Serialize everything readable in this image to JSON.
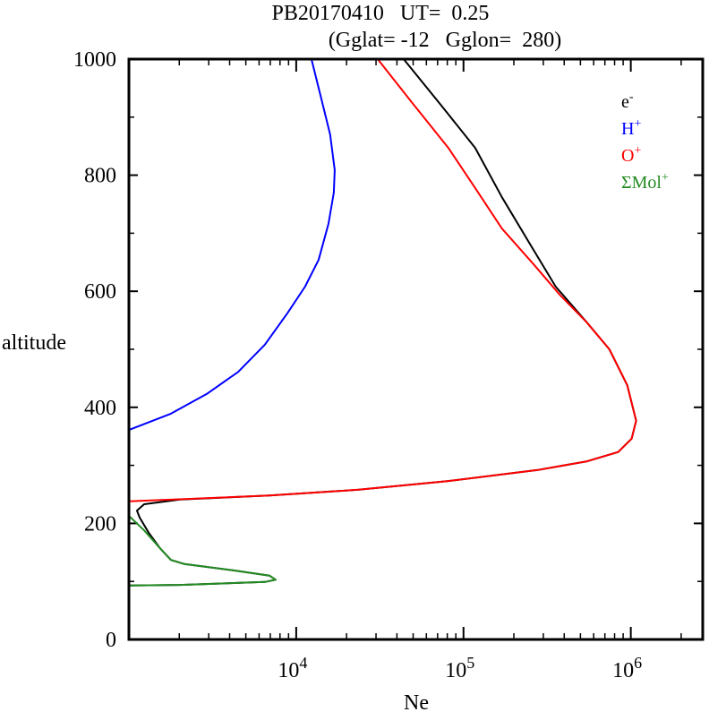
{
  "chart_data": {
    "type": "line",
    "title": "PB20170410   UT=  0.25",
    "subtitle": "(Gglat= -12   Gglon=  280)",
    "xlabel": "Ne",
    "ylabel": "altitude",
    "xscale": "log",
    "xlim_log10": [
      3.0,
      6.43
    ],
    "ylim": [
      0,
      1000
    ],
    "yticks": [
      0,
      200,
      400,
      600,
      800,
      1000
    ],
    "xticks": [
      {
        "base": "10",
        "exp": "4",
        "log": 4
      },
      {
        "base": "10",
        "exp": "5",
        "log": 5
      },
      {
        "base": "10",
        "exp": "6",
        "log": 6
      }
    ],
    "legend_position": "top-right",
    "series": [
      {
        "name": "e",
        "sup": "-",
        "color": "#000000",
        "log10_x": [
          4.642,
          4.856,
          5.07,
          5.23,
          5.39,
          5.551,
          5.738,
          5.872,
          5.979,
          6.032,
          6.005,
          5.925,
          5.738,
          5.444,
          4.909,
          4.374,
          3.84,
          3.305,
          3.091,
          3.048,
          3.064,
          3.118,
          3.187,
          3.251,
          3.332,
          3.626,
          3.84,
          3.877,
          3.813,
          3.305,
          3.0
        ],
        "y": [
          1000,
          924,
          847,
          762,
          685,
          608,
          546,
          500,
          438,
          377,
          346,
          323,
          307,
          292,
          273,
          258,
          248,
          241,
          233,
          222,
          210,
          184,
          157,
          137,
          130,
          119,
          110,
          103,
          99,
          94,
          93
        ]
      },
      {
        "name": "H",
        "sup": "+",
        "color": "#0000ff",
        "log10_x": [
          4.091,
          4.15,
          4.203,
          4.23,
          4.225,
          4.193,
          4.134,
          4.053,
          3.947,
          3.813,
          3.653,
          3.465,
          3.251,
          3.0
        ],
        "y": [
          1000,
          932,
          870,
          809,
          770,
          716,
          654,
          608,
          562,
          508,
          461,
          423,
          389,
          361
        ]
      },
      {
        "name": "O",
        "sup": "+",
        "color": "#ff0000",
        "log10_x": [
          4.487,
          4.695,
          4.909,
          5.07,
          5.23,
          5.417,
          5.578,
          5.738,
          5.872,
          5.979,
          6.032,
          6.005,
          5.925,
          5.738,
          5.444,
          4.909,
          4.374,
          3.84,
          3.0
        ],
        "y": [
          1000,
          924,
          847,
          778,
          708,
          647,
          593,
          546,
          500,
          438,
          377,
          346,
          323,
          307,
          292,
          273,
          258,
          248,
          238
        ]
      },
      {
        "name": "ΣMol",
        "sup": "+",
        "color": "#228b22",
        "log10_x": [
          3.0,
          3.091,
          3.187,
          3.251,
          3.332,
          3.626,
          3.84,
          3.877,
          3.813,
          3.305,
          3.0
        ],
        "y": [
          213,
          188,
          157,
          137,
          130,
          119,
          110,
          103,
          99,
          94,
          93
        ]
      }
    ]
  }
}
